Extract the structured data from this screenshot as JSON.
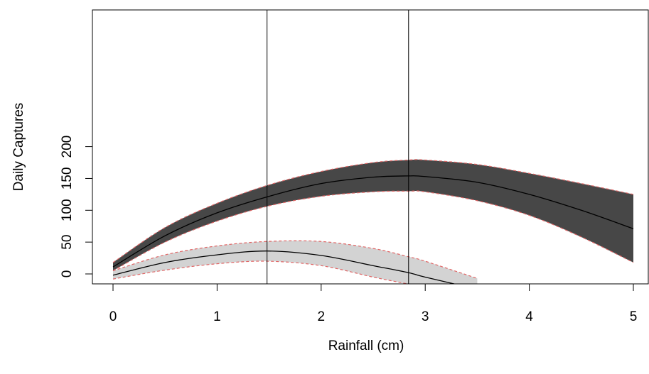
{
  "chart_data": {
    "type": "area",
    "title": "",
    "xlabel": "Rainfall (cm)",
    "ylabel": "Daily Captures",
    "xlim": [
      -0.2,
      5.15
    ],
    "ylim": [
      -7,
      207
    ],
    "xticks": [
      0,
      1,
      2,
      3,
      4,
      5
    ],
    "yticks": [
      0,
      50,
      100,
      150,
      200
    ],
    "xtick_labels": [
      "0",
      "1",
      "2",
      "3",
      "4",
      "5"
    ],
    "ytick_labels": [
      "0",
      "50",
      "100",
      "150",
      "200"
    ],
    "grid": false,
    "legend": "none",
    "vertical_lines": [
      1.48,
      2.84
    ],
    "series": [
      {
        "fill_color": "#474747",
        "line_color": "#000000",
        "band_border_color": "#e06666",
        "x": [
          0,
          0.5,
          1,
          1.5,
          2,
          2.5,
          2.84,
          3,
          3.5,
          4,
          4.5,
          5
        ],
        "fit": [
          11,
          60,
          96,
          122,
          142,
          152,
          154,
          153,
          144,
          125,
          100,
          71
        ],
        "lower": [
          5,
          50,
          83,
          107,
          122,
          129,
          130,
          129,
          115,
          92,
          58,
          18
        ],
        "upper": [
          18,
          73,
          111,
          140,
          161,
          175,
          179,
          179,
          172,
          158,
          142,
          125
        ]
      },
      {
        "fill_color": "#d3d3d3",
        "line_color": "#000000",
        "band_border_color": "#e06666",
        "x": [
          0,
          0.5,
          1,
          1.48,
          2,
          2.5,
          2.84,
          3,
          3.5
        ],
        "fit": [
          -2,
          18,
          30,
          36,
          29,
          13,
          2,
          -5,
          -24
        ],
        "lower": [
          -8,
          6,
          16,
          20,
          13,
          -5,
          -16,
          -22,
          -40
        ],
        "upper": [
          5,
          30,
          44,
          51,
          51,
          40,
          27,
          20,
          -7
        ]
      }
    ]
  }
}
